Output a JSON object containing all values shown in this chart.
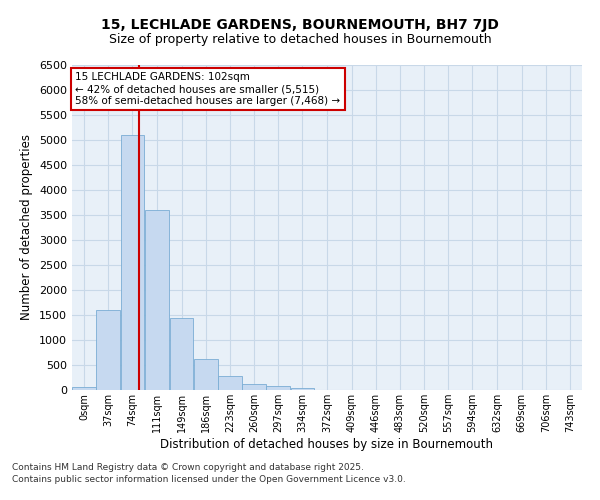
{
  "title_line1": "15, LECHLADE GARDENS, BOURNEMOUTH, BH7 7JD",
  "title_line2": "Size of property relative to detached houses in Bournemouth",
  "xlabel": "Distribution of detached houses by size in Bournemouth",
  "ylabel": "Number of detached properties",
  "bar_color": "#c6d9f0",
  "bar_edge_color": "#7aadd4",
  "grid_color": "#c8d8e8",
  "background_color": "#e8f0f8",
  "annotation_box_color": "#cc0000",
  "vline_color": "#cc0000",
  "vline_x": 102,
  "bin_edges": [
    0,
    37,
    74,
    111,
    149,
    186,
    223,
    260,
    297,
    334,
    372,
    409,
    446,
    483,
    520,
    557,
    594,
    632,
    669,
    706,
    743,
    780
  ],
  "values": [
    55,
    1600,
    5100,
    3600,
    1450,
    630,
    280,
    120,
    80,
    40,
    10,
    5,
    3,
    2,
    1,
    0,
    0,
    0,
    0,
    0,
    0
  ],
  "categories": [
    "0sqm",
    "37sqm",
    "74sqm",
    "111sqm",
    "149sqm",
    "186sqm",
    "223sqm",
    "260sqm",
    "297sqm",
    "334sqm",
    "372sqm",
    "409sqm",
    "446sqm",
    "483sqm",
    "520sqm",
    "557sqm",
    "594sqm",
    "632sqm",
    "669sqm",
    "706sqm",
    "743sqm"
  ],
  "ylim": [
    0,
    6500
  ],
  "yticks": [
    0,
    500,
    1000,
    1500,
    2000,
    2500,
    3000,
    3500,
    4000,
    4500,
    5000,
    5500,
    6000,
    6500
  ],
  "annotation_text": "15 LECHLADE GARDENS: 102sqm\n← 42% of detached houses are smaller (5,515)\n58% of semi-detached houses are larger (7,468) →",
  "footnote1": "Contains HM Land Registry data © Crown copyright and database right 2025.",
  "footnote2": "Contains public sector information licensed under the Open Government Licence v3.0."
}
